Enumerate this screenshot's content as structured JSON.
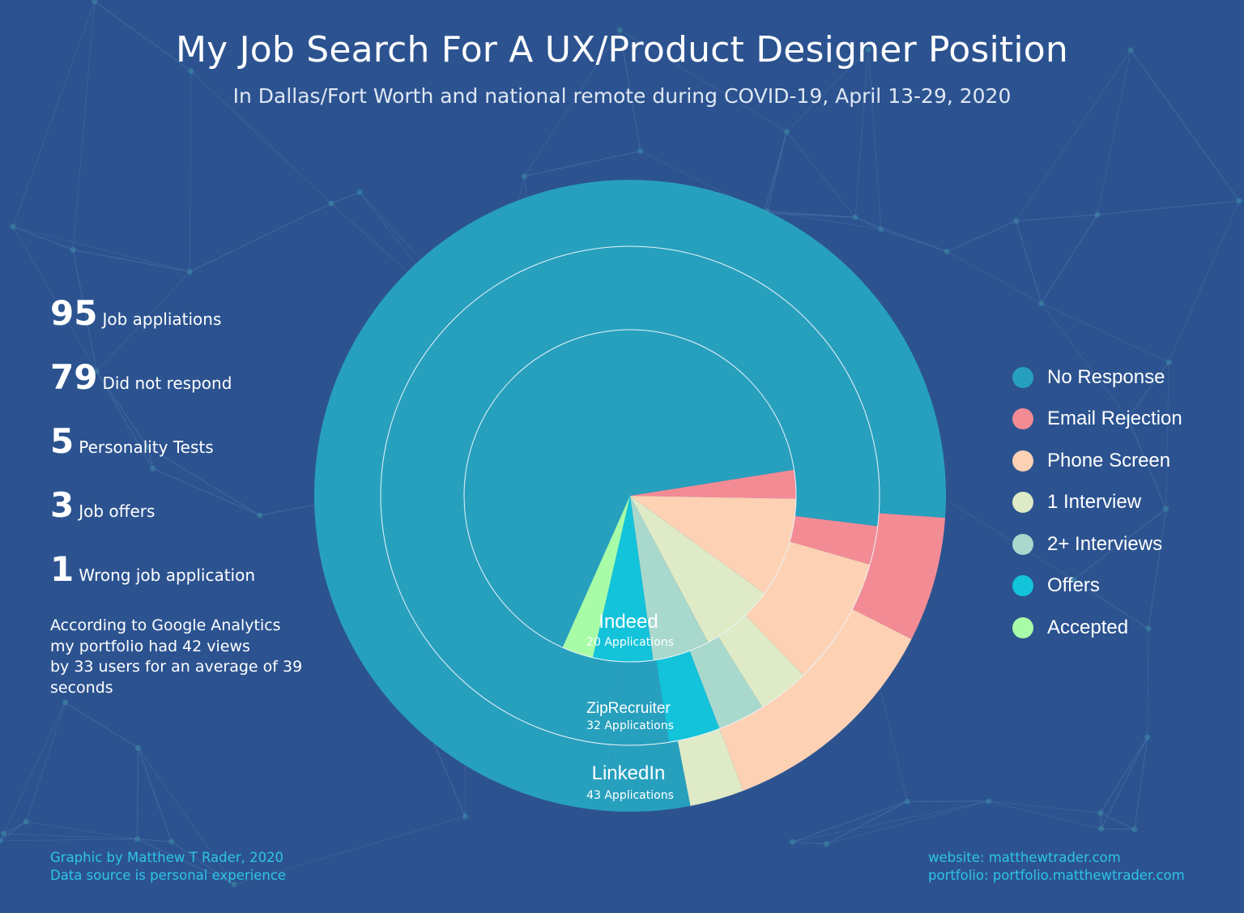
{
  "title": "My Job Search For A UX/Product Designer Position",
  "subtitle": "In Dallas/Fort Worth and national remote during COVID-19, April 13-29, 2020",
  "stats": [
    {
      "number": "95",
      "label": "Job appliations"
    },
    {
      "number": "79",
      "label": "Did not respond"
    },
    {
      "number": "5",
      "label": "Personality Tests"
    },
    {
      "number": "3",
      "label": "Job offers"
    },
    {
      "number": "1",
      "label": "Wrong job application"
    }
  ],
  "analytics_note": [
    "According to Google Analytics",
    "my portfolio had 42 views",
    "by 33 users for an average of 39",
    "seconds"
  ],
  "footer": {
    "credit": "Graphic by Matthew T Rader, 2020",
    "source": "Data source is personal experience",
    "website": "website: matthewtrader.com",
    "portfolio": "portfolio: portfolio.matthewtrader.com"
  },
  "chart_data": {
    "type": "sunburst",
    "legend_position": "right",
    "categories": [
      {
        "name": "No Response",
        "color": "#27a0be"
      },
      {
        "name": "Email Rejection",
        "color": "#f38b95"
      },
      {
        "name": "Phone Screen",
        "color": "#fdd1b4"
      },
      {
        "name": "1 Interview",
        "color": "#dfeac6"
      },
      {
        "name": "2+ Interviews",
        "color": "#a9d8cc"
      },
      {
        "name": "Offers",
        "color": "#13c3da"
      },
      {
        "name": "Accepted",
        "color": "#a9fca7"
      }
    ],
    "rings": [
      {
        "name": "Indeed",
        "subtitle": "20 Applications",
        "slices": [
          {
            "category": "No Response",
            "degrees": 257
          },
          {
            "category": "Email Rejection",
            "degrees": 10
          },
          {
            "category": "Phone Screen",
            "degrees": 35
          },
          {
            "category": "1 Interview",
            "degrees": 26
          },
          {
            "category": "2+ Interviews",
            "degrees": 20
          },
          {
            "category": "Offers",
            "degrees": 21
          },
          {
            "category": "Accepted",
            "degrees": 11
          }
        ]
      },
      {
        "name": "ZipRecruiter",
        "subtitle": "32 Applications",
        "slices": [
          {
            "category": "No Response",
            "degrees": 273
          },
          {
            "category": "Email Rejection",
            "degrees": 9
          },
          {
            "category": "Phone Screen",
            "degrees": 30
          },
          {
            "category": "1 Interview",
            "degrees": 12
          },
          {
            "category": "2+ Interviews",
            "degrees": 11
          },
          {
            "category": "Offers",
            "degrees": 12
          },
          {
            "category": "No Response",
            "degrees": 13
          }
        ]
      },
      {
        "name": "LinkedIn",
        "subtitle": "43 Applications",
        "slices": [
          {
            "category": "No Response",
            "degrees": 270
          },
          {
            "category": "Email Rejection",
            "degrees": 23
          },
          {
            "category": "Phone Screen",
            "degrees": 42
          },
          {
            "category": "1 Interview",
            "degrees": 10
          },
          {
            "category": "No Response",
            "degrees": 15
          }
        ]
      }
    ]
  }
}
